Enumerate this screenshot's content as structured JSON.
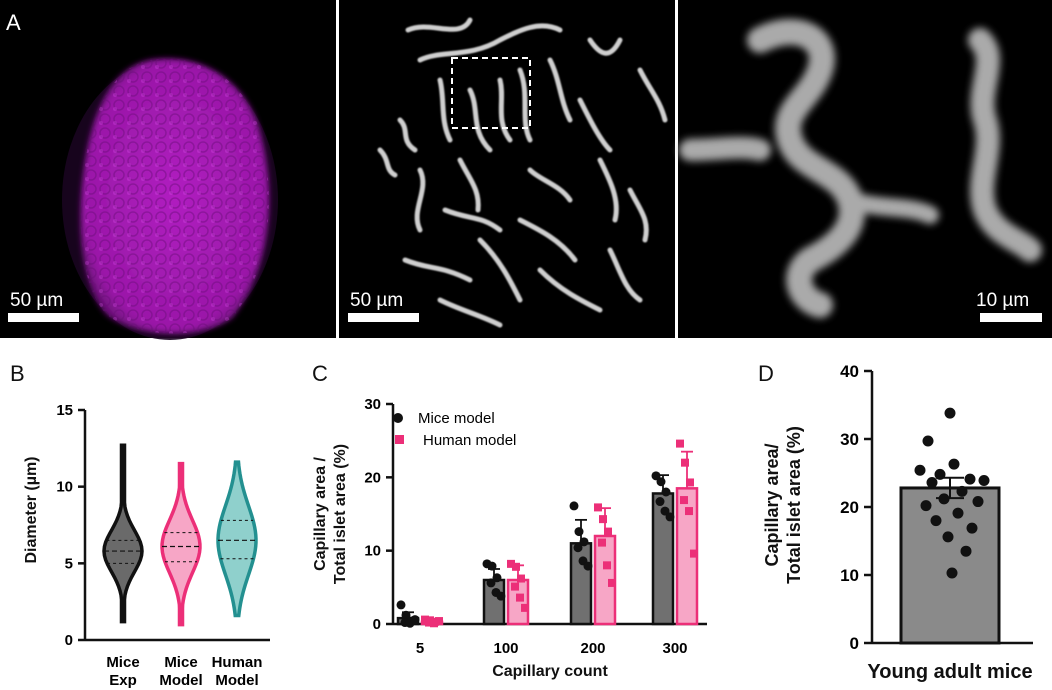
{
  "panel_labels": {
    "a": "A",
    "b": "B",
    "c": "C",
    "d": "D"
  },
  "images": [
    {
      "name": "islet-magenta-image",
      "scale_bar": "50 µm",
      "color": "#c020c8"
    },
    {
      "name": "capillary-image",
      "scale_bar": "50 µm",
      "color": "#e8e8e8"
    },
    {
      "name": "capillary-zoom-image",
      "scale_bar": "10 µm",
      "color": "#e8e8e8"
    }
  ],
  "colors": {
    "mice": "#111111",
    "bar_mice": "#707070",
    "human": "#ec2f78",
    "bar_human": "#f7a6c6",
    "human_model_violin": "#239090",
    "bar_d": "#8a8a8a"
  },
  "chart_data": [
    {
      "panel": "B",
      "type": "violin",
      "ylabel": "Diameter (µm)",
      "ylim": [
        0,
        15
      ],
      "yticks": [
        0,
        5,
        10,
        15
      ],
      "categories": [
        "Mice\nExp",
        "Mice\nModel",
        "Human\nModel"
      ],
      "series": [
        {
          "category": "Mice\nExp",
          "min": 1.2,
          "max": 12.7,
          "median": 5.8,
          "q1": 5.0,
          "q3": 6.5,
          "color": "#111111",
          "fill": "#6a6a6a"
        },
        {
          "category": "Mice\nModel",
          "min": 1.0,
          "max": 11.5,
          "median": 6.1,
          "q1": 5.1,
          "q3": 7.0,
          "color": "#ec2f78",
          "fill": "#f7a6c6"
        },
        {
          "category": "Human\nModel",
          "min": 1.6,
          "max": 11.6,
          "median": 6.5,
          "q1": 5.3,
          "q3": 7.8,
          "color": "#239090",
          "fill": "#8fd0cc"
        }
      ]
    },
    {
      "panel": "C",
      "type": "bar",
      "ylabel": "Capillary area /\nTotal islet area (%)",
      "xlabel": "Capillary count",
      "ylim": [
        0,
        30
      ],
      "yticks": [
        0,
        10,
        20,
        30
      ],
      "categories": [
        "5",
        "100",
        "200",
        "300"
      ],
      "legend_position": "top-left",
      "series": [
        {
          "name": "Mice model",
          "values": [
            0.8,
            6.0,
            11.0,
            17.8
          ],
          "errors": [
            0.8,
            1.5,
            3.2,
            2.5
          ],
          "points": [
            [
              2.6,
              1.2,
              0.4,
              0.2,
              0.1,
              0.6
            ],
            [
              8.2,
              7.9,
              6.3,
              5.6,
              4.3,
              3.8
            ],
            [
              16.1,
              12.6,
              11.2,
              10.4,
              8.6,
              7.9
            ],
            [
              20.2,
              19.4,
              18.0,
              16.7,
              15.4,
              14.6
            ]
          ]
        },
        {
          "name": "Human model",
          "values": [
            0.3,
            6.0,
            12.0,
            18.5
          ],
          "errors": [
            0.3,
            2.0,
            3.8,
            5.0
          ],
          "points": [
            [
              0.6,
              0.5,
              0.3,
              0.2,
              0.1,
              0.4
            ],
            [
              8.2,
              7.8,
              6.2,
              5.1,
              3.6,
              2.2
            ],
            [
              15.9,
              14.3,
              12.6,
              11.1,
              8.0,
              5.6
            ],
            [
              24.6,
              22.0,
              19.3,
              16.9,
              15.4,
              9.6
            ]
          ]
        }
      ]
    },
    {
      "panel": "D",
      "type": "bar",
      "ylabel": "Capillary area/\nTotal islet area (%)",
      "xlabel": "Young adult mice",
      "ylim": [
        0,
        40
      ],
      "yticks": [
        0,
        10,
        20,
        30,
        40
      ],
      "categories": [
        "Young adult mice"
      ],
      "series": [
        {
          "values": [
            22.8
          ],
          "errors": [
            1.5
          ],
          "points": [
            33.8,
            29.7,
            26.3,
            25.4,
            24.8,
            24.1,
            23.9,
            23.6,
            22.3,
            21.2,
            20.8,
            20.2,
            19.1,
            18.0,
            16.9,
            15.6,
            13.5,
            10.3
          ]
        }
      ]
    }
  ]
}
